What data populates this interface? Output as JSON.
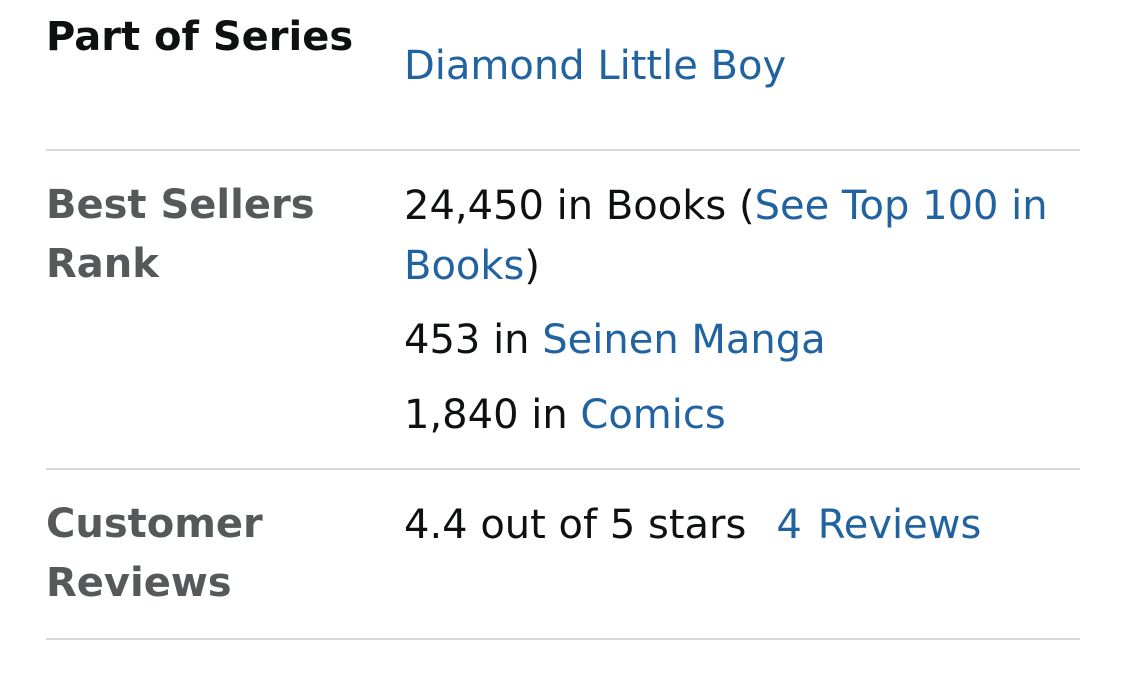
{
  "series": {
    "label": "Part of Series",
    "value": "Diamond Little Boy"
  },
  "rank": {
    "label": "Best Sellers Rank",
    "lines": [
      {
        "prefix": "24,450 in Books (",
        "link": "See Top 100 in Books",
        "suffix": ")"
      },
      {
        "prefix": "453 in ",
        "link": "Seinen Manga"
      },
      {
        "prefix": "1,840 in ",
        "link": "Comics"
      }
    ]
  },
  "reviews": {
    "label": "Customer Reviews",
    "rating_text": "4.4 out of 5 stars",
    "count": "4",
    "count_label": "Reviews"
  },
  "colors": {
    "link": "#2162a1",
    "label_muted": "#565959",
    "text": "#0f1111",
    "divider": "#d5d9d9"
  }
}
